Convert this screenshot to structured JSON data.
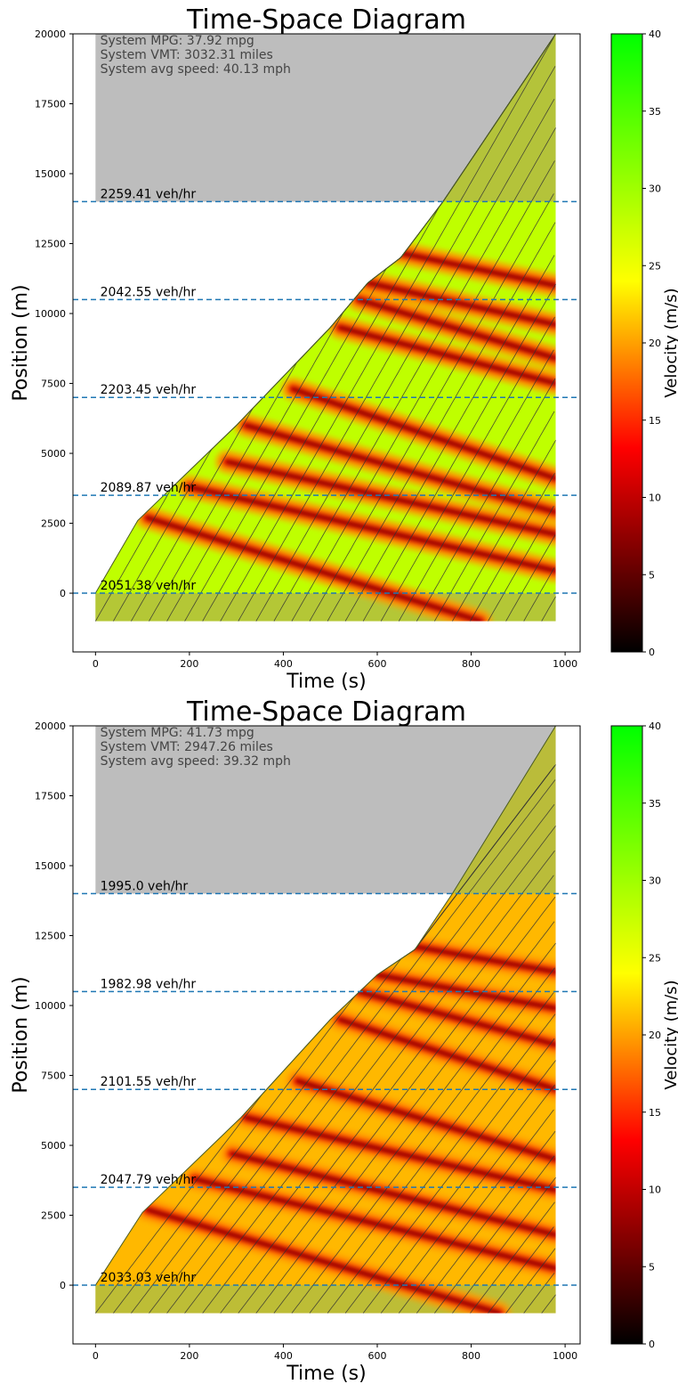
{
  "colors": {
    "gray_region": "#bdbdbd",
    "free_flow_region": "#b2bd40",
    "detector_line": "#1f77b4",
    "trajectory": "#333333",
    "colormap": [
      "#000000",
      "#ff0000",
      "#ffff00",
      "#00ff00"
    ]
  },
  "charts": [
    {
      "title": "Time-Space Diagram",
      "xlabel": "Time (s)",
      "ylabel": "Position (m)",
      "colorbar_label": "Velocity (m/s)",
      "stats": [
        "System MPG: 37.92 mpg",
        "System VMT: 3032.31 miles",
        "System avg speed: 40.13 mph"
      ],
      "detectors": [
        {
          "label": "2051.38 veh/hr"
        },
        {
          "label": "2089.87 veh/hr"
        },
        {
          "label": "2203.45 veh/hr"
        },
        {
          "label": "2042.55 veh/hr"
        },
        {
          "label": "2259.41 veh/hr"
        }
      ]
    },
    {
      "title": "Time-Space Diagram",
      "xlabel": "Time (s)",
      "ylabel": "Position (m)",
      "colorbar_label": "Velocity (m/s)",
      "stats": [
        "System MPG: 41.73 mpg",
        "System VMT: 2947.26 miles",
        "System avg speed: 39.32 mph"
      ],
      "detectors": [
        {
          "label": "2033.03 veh/hr"
        },
        {
          "label": "2047.79 veh/hr"
        },
        {
          "label": "2101.55 veh/hr"
        },
        {
          "label": "1982.98 veh/hr"
        },
        {
          "label": "1995.0 veh/hr"
        }
      ]
    }
  ],
  "chart_data": [
    {
      "type": "heatmap",
      "title": "Time-Space Diagram",
      "xlabel": "Time (s)",
      "ylabel": "Position (m)",
      "xlim": [
        -48,
        1032
      ],
      "ylim": [
        -2100,
        20000
      ],
      "xticks": [
        0,
        200,
        400,
        600,
        800,
        1000
      ],
      "yticks": [
        0,
        2500,
        5000,
        7500,
        10000,
        12500,
        15000,
        17500,
        20000
      ],
      "colorbar": {
        "label": "Velocity (m/s)",
        "range": [
          0,
          40
        ],
        "ticks": [
          0,
          5,
          10,
          15,
          20,
          25,
          30,
          35,
          40
        ]
      },
      "detector_positions": [
        0,
        3500,
        7000,
        10500,
        14000
      ],
      "flows_veh_per_hr": [
        2051.38,
        2089.87,
        2203.45,
        2042.55,
        2259.41
      ],
      "system_mpg": 37.92,
      "system_vmt_miles": 3032.31,
      "system_avg_speed_mph": 40.13,
      "simulation_end_time": 980,
      "initial_position": -1000,
      "front_boundary": [
        [
          0,
          0
        ],
        [
          90,
          2600
        ],
        [
          300,
          6000
        ],
        [
          500,
          9500
        ],
        [
          580,
          11100
        ],
        [
          650,
          12000
        ],
        [
          740,
          14000
        ],
        [
          980,
          20000
        ]
      ],
      "jam_waves": [
        {
          "start": [
            110,
            2700
          ],
          "end": [
            820,
            -1000
          ]
        },
        {
          "start": [
            200,
            3800
          ],
          "end": [
            980,
            800
          ]
        },
        {
          "start": [
            280,
            4700
          ],
          "end": [
            980,
            2100
          ]
        },
        {
          "start": [
            320,
            6000
          ],
          "end": [
            980,
            2900
          ]
        },
        {
          "start": [
            420,
            7300
          ],
          "end": [
            980,
            4100
          ]
        },
        {
          "start": [
            520,
            9500
          ],
          "end": [
            980,
            7500
          ]
        },
        {
          "start": [
            560,
            10500
          ],
          "end": [
            980,
            8400
          ]
        },
        {
          "start": [
            580,
            11100
          ],
          "end": [
            980,
            9600
          ]
        },
        {
          "start": [
            640,
            12200
          ],
          "end": [
            980,
            11000
          ]
        }
      ],
      "free_speed_ms": 28,
      "trajectory_headway_s": 38
    },
    {
      "type": "heatmap",
      "title": "Time-Space Diagram",
      "xlabel": "Time (s)",
      "ylabel": "Position (m)",
      "xlim": [
        -48,
        1032
      ],
      "ylim": [
        -2100,
        20000
      ],
      "xticks": [
        0,
        200,
        400,
        600,
        800,
        1000
      ],
      "yticks": [
        0,
        2500,
        5000,
        7500,
        10000,
        12500,
        15000,
        17500,
        20000
      ],
      "colorbar": {
        "label": "Velocity (m/s)",
        "range": [
          0,
          40
        ],
        "ticks": [
          0,
          5,
          10,
          15,
          20,
          25,
          30,
          35,
          40
        ]
      },
      "detector_positions": [
        0,
        3500,
        7000,
        10500,
        14000
      ],
      "flows_veh_per_hr": [
        2033.03,
        2047.79,
        2101.55,
        1982.98,
        1995.0
      ],
      "system_mpg": 41.73,
      "system_vmt_miles": 2947.26,
      "system_avg_speed_mph": 39.32,
      "simulation_end_time": 980,
      "initial_position": -1000,
      "front_boundary": [
        [
          0,
          0
        ],
        [
          100,
          2600
        ],
        [
          310,
          6000
        ],
        [
          500,
          9500
        ],
        [
          600,
          11100
        ],
        [
          680,
          12000
        ],
        [
          760,
          14000
        ],
        [
          980,
          20000
        ]
      ],
      "jam_waves": [
        {
          "start": [
            110,
            2700
          ],
          "end": [
            860,
            -1000
          ]
        },
        {
          "start": [
            210,
            3800
          ],
          "end": [
            980,
            600
          ]
        },
        {
          "start": [
            290,
            4700
          ],
          "end": [
            980,
            1800
          ]
        },
        {
          "start": [
            320,
            6000
          ],
          "end": [
            980,
            3400
          ]
        },
        {
          "start": [
            430,
            7300
          ],
          "end": [
            980,
            4500
          ]
        },
        {
          "start": [
            520,
            9500
          ],
          "end": [
            980,
            7000
          ]
        },
        {
          "start": [
            560,
            10500
          ],
          "end": [
            980,
            8600
          ]
        },
        {
          "start": [
            600,
            11100
          ],
          "end": [
            980,
            9900
          ]
        },
        {
          "start": [
            650,
            12200
          ],
          "end": [
            980,
            11200
          ]
        }
      ],
      "free_speed_ms": 21,
      "trajectory_headway_s": 38
    }
  ]
}
